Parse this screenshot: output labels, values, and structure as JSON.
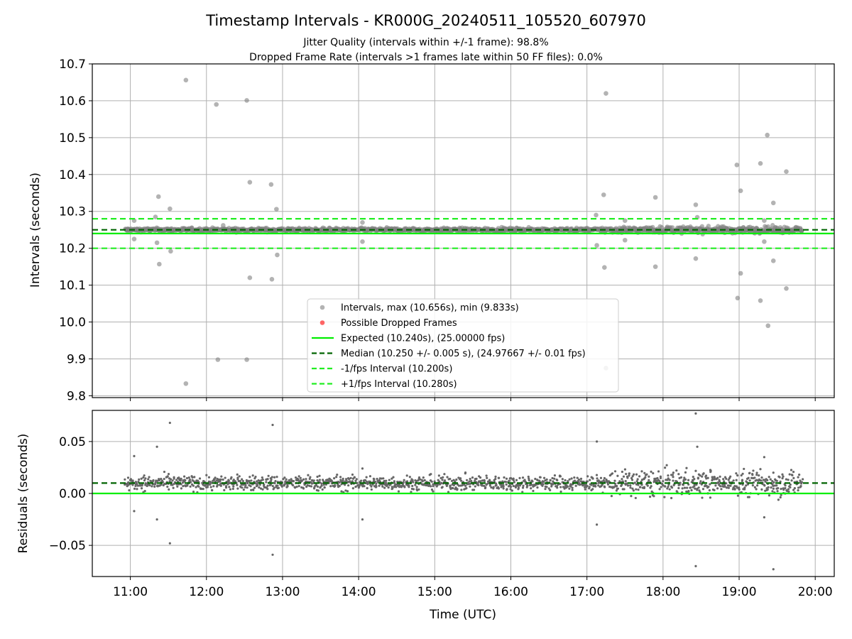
{
  "title": "Timestamp Intervals - KR000G_20240511_105520_607970",
  "subtitle_lines": [
    "Jitter Quality (intervals within +/-1 frame): 98.8%",
    "Dropped Frame Rate (intervals >1 frames late within 50 FF files): 0.0%"
  ],
  "colors": {
    "intervals": "#808080",
    "dropped": "#ff0000",
    "expected": "#00ee00",
    "median": "#006400",
    "band": "#22ee22",
    "residuals": "#666666",
    "grid": "#b0b0b0"
  },
  "chart_data": [
    {
      "type": "scatter",
      "panel": "top",
      "ylabel": "Intervals (seconds)",
      "ylim": [
        9.795,
        10.7
      ],
      "xlim_hours": [
        10.5,
        20.25
      ],
      "x_format": "HH:MM",
      "yticks": [
        9.8,
        9.9,
        10.0,
        10.1,
        10.2,
        10.3,
        10.4,
        10.5,
        10.6,
        10.7
      ],
      "ytick_labels": [
        "9.8",
        "9.9",
        "10.0",
        "10.1",
        "10.2",
        "10.3",
        "10.4",
        "10.5",
        "10.6",
        "10.7"
      ],
      "grid": true,
      "legend_position": "lower-center",
      "legend": [
        {
          "label": "Intervals, max (10.656s), min (9.833s)",
          "kind": "marker",
          "color": "#808080"
        },
        {
          "label": "Possible Dropped Frames",
          "kind": "marker",
          "color": "#ff0000"
        },
        {
          "label": "Expected (10.240s), (25.00000 fps)",
          "kind": "line",
          "color": "#00ee00",
          "dash": false
        },
        {
          "label": "Median (10.250 +/- 0.005 s), (24.97667 +/- 0.01 fps)",
          "kind": "line",
          "color": "#006400",
          "dash": true
        },
        {
          "label": "-1/fps Interval (10.200s)",
          "kind": "line",
          "color": "#22ee22",
          "dash": true
        },
        {
          "label": "+1/fps Interval (10.280s)",
          "kind": "line",
          "color": "#22ee22",
          "dash": true
        }
      ],
      "hlines": [
        {
          "name": "Expected",
          "y": 10.24,
          "color": "#00ee00",
          "dash": false
        },
        {
          "name": "Median",
          "y": 10.25,
          "color": "#006400",
          "dash": true
        },
        {
          "name": "-1/fps Interval",
          "y": 10.2,
          "color": "#22ee22",
          "dash": true
        },
        {
          "name": "+1/fps Interval",
          "y": 10.28,
          "color": "#22ee22",
          "dash": true
        }
      ],
      "dense_band": {
        "x_range": [
          10.93,
          19.83
        ],
        "center": 10.25
      },
      "outliers": [
        [
          11.05,
          10.275
        ],
        [
          11.05,
          10.225
        ],
        [
          11.33,
          10.285
        ],
        [
          11.35,
          10.215
        ],
        [
          11.37,
          10.34
        ],
        [
          11.38,
          10.157
        ],
        [
          11.52,
          10.307
        ],
        [
          11.53,
          10.192
        ],
        [
          11.73,
          10.656
        ],
        [
          11.73,
          9.833
        ],
        [
          12.13,
          10.59
        ],
        [
          12.15,
          9.898
        ],
        [
          12.22,
          10.262
        ],
        [
          12.53,
          10.601
        ],
        [
          12.53,
          9.898
        ],
        [
          12.57,
          10.379
        ],
        [
          12.57,
          10.12
        ],
        [
          12.85,
          10.373
        ],
        [
          12.86,
          10.116
        ],
        [
          12.92,
          10.306
        ],
        [
          12.93,
          10.182
        ],
        [
          14.05,
          10.27
        ],
        [
          14.05,
          10.218
        ],
        [
          17.12,
          10.29
        ],
        [
          17.13,
          10.208
        ],
        [
          17.22,
          10.345
        ],
        [
          17.23,
          10.148
        ],
        [
          17.25,
          10.62
        ],
        [
          17.25,
          9.875
        ],
        [
          17.5,
          10.275
        ],
        [
          17.5,
          10.222
        ],
        [
          17.9,
          10.338
        ],
        [
          17.9,
          10.15
        ],
        [
          18.43,
          10.318
        ],
        [
          18.43,
          10.172
        ],
        [
          18.45,
          10.284
        ],
        [
          18.97,
          10.426
        ],
        [
          18.98,
          10.065
        ],
        [
          19.02,
          10.356
        ],
        [
          19.02,
          10.132
        ],
        [
          19.28,
          10.43
        ],
        [
          19.28,
          10.058
        ],
        [
          19.37,
          10.507
        ],
        [
          19.38,
          9.99
        ],
        [
          19.45,
          10.323
        ],
        [
          19.45,
          10.166
        ],
        [
          19.62,
          10.408
        ],
        [
          19.62,
          10.091
        ],
        [
          19.33,
          10.218
        ],
        [
          19.33,
          10.275
        ]
      ]
    },
    {
      "type": "scatter",
      "panel": "bottom",
      "xlabel": "Time (UTC)",
      "ylabel": "Residuals (seconds)",
      "ylim": [
        -0.08,
        0.08
      ],
      "xlim_hours": [
        10.5,
        20.25
      ],
      "yticks": [
        -0.05,
        0.0,
        0.05
      ],
      "ytick_labels": [
        "−0.05",
        "0.00",
        "0.05"
      ],
      "xticks_hours": [
        11,
        12,
        13,
        14,
        15,
        16,
        17,
        18,
        19,
        20
      ],
      "xtick_labels": [
        "11:00",
        "12:00",
        "13:00",
        "14:00",
        "15:00",
        "16:00",
        "17:00",
        "18:00",
        "19:00",
        "20:00"
      ],
      "grid": true,
      "hlines": [
        {
          "name": "Expected",
          "y": 0.0,
          "color": "#00ee00",
          "dash": false
        },
        {
          "name": "Median",
          "y": 0.01,
          "color": "#006400",
          "dash": true
        }
      ],
      "dense_band": {
        "x_range": [
          10.93,
          19.83
        ],
        "center": 0.01
      },
      "outliers": [
        [
          11.05,
          0.036
        ],
        [
          11.05,
          -0.017
        ],
        [
          11.35,
          0.045
        ],
        [
          11.35,
          -0.025
        ],
        [
          11.52,
          0.068
        ],
        [
          11.52,
          -0.048
        ],
        [
          12.87,
          0.066
        ],
        [
          12.87,
          -0.059
        ],
        [
          14.05,
          0.024
        ],
        [
          14.05,
          -0.025
        ],
        [
          17.13,
          0.05
        ],
        [
          17.13,
          -0.03
        ],
        [
          18.43,
          0.077
        ],
        [
          18.43,
          -0.07
        ],
        [
          18.45,
          0.045
        ],
        [
          19.33,
          0.035
        ],
        [
          19.33,
          -0.023
        ],
        [
          19.45,
          -0.073
        ],
        [
          19.45,
          0.02
        ]
      ]
    }
  ]
}
